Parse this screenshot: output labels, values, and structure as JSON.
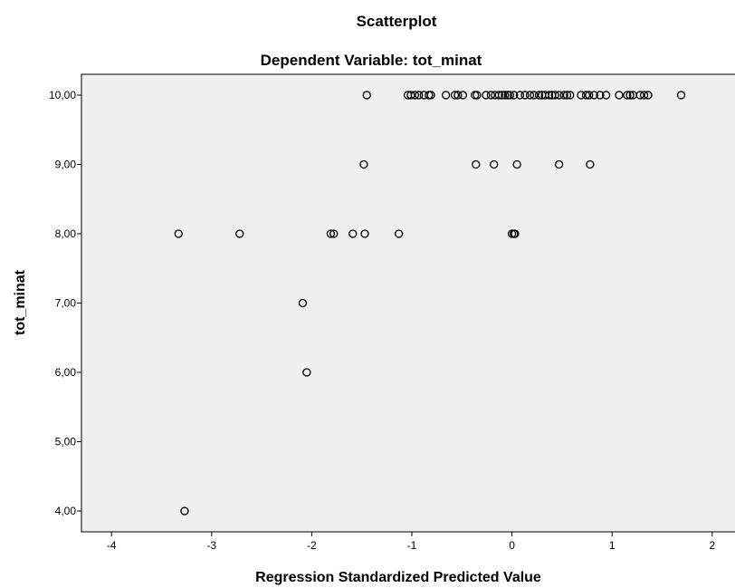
{
  "chart_data": {
    "type": "scatter",
    "title": "Scatterplot",
    "subtitle": "Dependent Variable: tot_minat",
    "xlabel": "Regression Standardized Predicted Value",
    "ylabel": "tot_minat",
    "xlim": [
      -4.3,
      2.3
    ],
    "ylim": [
      3.7,
      10.3
    ],
    "x_ticks": [
      -4,
      -3,
      -2,
      -1,
      0,
      1,
      2
    ],
    "x_tick_labels": [
      "-4",
      "-3",
      "-2",
      "-1",
      "0",
      "1",
      "2"
    ],
    "y_ticks": [
      4,
      5,
      6,
      7,
      8,
      9,
      10
    ],
    "y_tick_labels": [
      "4,00",
      "5,00",
      "6,00",
      "7,00",
      "8,00",
      "9,00",
      "10,00"
    ],
    "grid": false,
    "colors": {
      "plot_background": "#f0f0f0",
      "marker_stroke": "#000000",
      "axis": "#000000"
    },
    "points": [
      {
        "x": -3.27,
        "y": 4
      },
      {
        "x": -2.05,
        "y": 6
      },
      {
        "x": -2.09,
        "y": 7
      },
      {
        "x": -3.33,
        "y": 8
      },
      {
        "x": -2.72,
        "y": 8
      },
      {
        "x": -1.81,
        "y": 8
      },
      {
        "x": -1.78,
        "y": 8
      },
      {
        "x": -1.59,
        "y": 8
      },
      {
        "x": -1.47,
        "y": 8
      },
      {
        "x": -1.13,
        "y": 8
      },
      {
        "x": 0.0,
        "y": 8
      },
      {
        "x": 0.02,
        "y": 8
      },
      {
        "x": 0.03,
        "y": 8
      },
      {
        "x": -1.48,
        "y": 9
      },
      {
        "x": -0.36,
        "y": 9
      },
      {
        "x": -0.18,
        "y": 9
      },
      {
        "x": 0.05,
        "y": 9
      },
      {
        "x": 0.47,
        "y": 9
      },
      {
        "x": 0.78,
        "y": 9
      },
      {
        "x": -1.45,
        "y": 10
      },
      {
        "x": -1.04,
        "y": 10
      },
      {
        "x": -1.01,
        "y": 10
      },
      {
        "x": -0.97,
        "y": 10
      },
      {
        "x": -0.93,
        "y": 10
      },
      {
        "x": -0.88,
        "y": 10
      },
      {
        "x": -0.83,
        "y": 10
      },
      {
        "x": -0.81,
        "y": 10
      },
      {
        "x": -0.66,
        "y": 10
      },
      {
        "x": -0.57,
        "y": 10
      },
      {
        "x": -0.54,
        "y": 10
      },
      {
        "x": -0.49,
        "y": 10
      },
      {
        "x": -0.37,
        "y": 10
      },
      {
        "x": -0.35,
        "y": 10
      },
      {
        "x": -0.26,
        "y": 10
      },
      {
        "x": -0.21,
        "y": 10
      },
      {
        "x": -0.17,
        "y": 10
      },
      {
        "x": -0.13,
        "y": 10
      },
      {
        "x": -0.1,
        "y": 10
      },
      {
        "x": -0.07,
        "y": 10
      },
      {
        "x": -0.04,
        "y": 10
      },
      {
        "x": -0.02,
        "y": 10
      },
      {
        "x": 0.02,
        "y": 10
      },
      {
        "x": 0.08,
        "y": 10
      },
      {
        "x": 0.13,
        "y": 10
      },
      {
        "x": 0.18,
        "y": 10
      },
      {
        "x": 0.22,
        "y": 10
      },
      {
        "x": 0.27,
        "y": 10
      },
      {
        "x": 0.3,
        "y": 10
      },
      {
        "x": 0.33,
        "y": 10
      },
      {
        "x": 0.37,
        "y": 10
      },
      {
        "x": 0.4,
        "y": 10
      },
      {
        "x": 0.43,
        "y": 10
      },
      {
        "x": 0.47,
        "y": 10
      },
      {
        "x": 0.52,
        "y": 10
      },
      {
        "x": 0.55,
        "y": 10
      },
      {
        "x": 0.58,
        "y": 10
      },
      {
        "x": 0.69,
        "y": 10
      },
      {
        "x": 0.74,
        "y": 10
      },
      {
        "x": 0.77,
        "y": 10
      },
      {
        "x": 0.82,
        "y": 10
      },
      {
        "x": 0.88,
        "y": 10
      },
      {
        "x": 0.94,
        "y": 10
      },
      {
        "x": 1.07,
        "y": 10
      },
      {
        "x": 1.15,
        "y": 10
      },
      {
        "x": 1.18,
        "y": 10
      },
      {
        "x": 1.21,
        "y": 10
      },
      {
        "x": 1.28,
        "y": 10
      },
      {
        "x": 1.32,
        "y": 10
      },
      {
        "x": 1.36,
        "y": 10
      },
      {
        "x": 1.69,
        "y": 10
      }
    ]
  }
}
